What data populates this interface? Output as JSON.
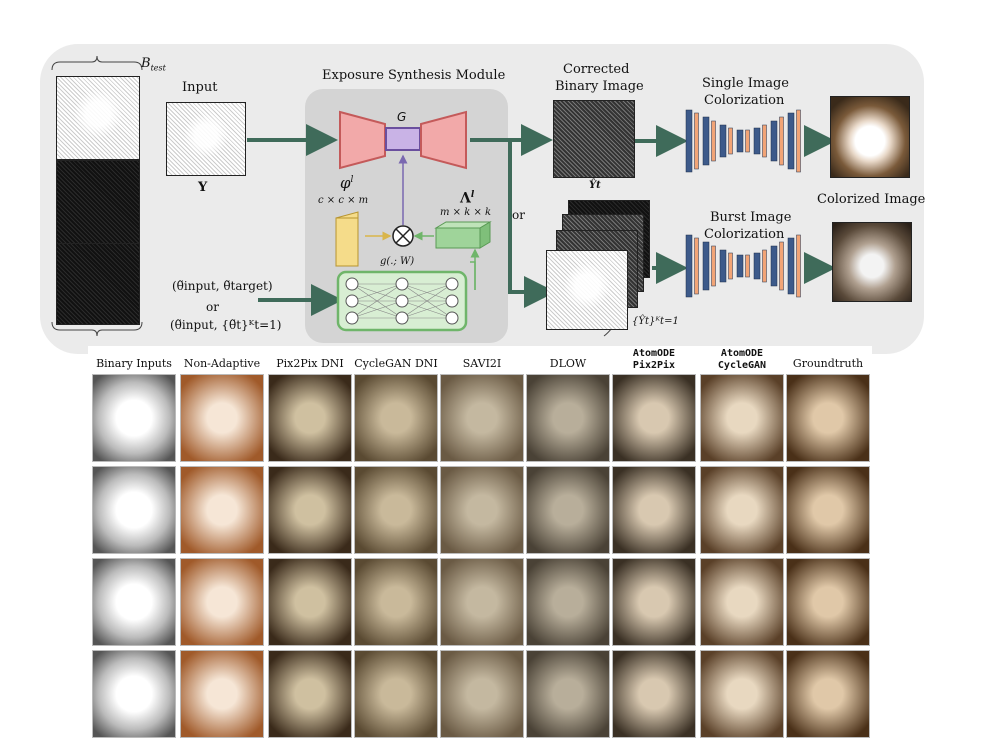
{
  "pipeline": {
    "batch_label": "B",
    "batch_subscript": "test",
    "input_label": "Input",
    "input_symbol": "Y",
    "module_title": "Exposure Synthesis Module",
    "generator_symbol": "G",
    "phi_symbol": "φ",
    "phi_sup": "l",
    "phi_dims": "c × c × m",
    "lambda_symbol": "Λ",
    "lambda_sup": "l",
    "lambda_dims": "m × k × k",
    "g_func": "g(.; W)",
    "theta_pair": "(θ̃input, θ̃target)",
    "or_text": "or",
    "theta_burst": "(θ̃input, {θ̃t}ᴷt=1)",
    "corrected_label_1": "Corrected",
    "corrected_label_2": "Binary Image",
    "corrected_symbol": "Ŷt",
    "burst_symbol": "{Ŷt}ᴷt=1",
    "branch_or": "or",
    "single_label_1": "Single Image",
    "single_label_2": "Colorization",
    "burst_label_1": "Burst Image",
    "burst_label_2": "Colorization",
    "colorized_label": "Colorized Image"
  },
  "comparison": {
    "columns": [
      {
        "title": "Binary Inputs",
        "bold": false
      },
      {
        "title": "Non-Adaptive",
        "bold": false
      },
      {
        "title": "Pix2Pix DNI",
        "bold": false
      },
      {
        "title": "CycleGAN DNI",
        "bold": false
      },
      {
        "title": "SAVI2I",
        "bold": false
      },
      {
        "title": "DLOW",
        "bold": false
      },
      {
        "title": "AtomODE Pix2Pix",
        "bold": true
      },
      {
        "title": "AtomODE CycleGAN",
        "bold": true
      },
      {
        "title": "Groundtruth",
        "bold": false
      }
    ],
    "rows": 4
  },
  "colors": {
    "panel": "#ebebeb",
    "module": "#d4d4d4",
    "arrow": "#3f6b5a",
    "encoder": "#f2a9a9",
    "latent": "#c9b3e6",
    "phi_block": "#f5dc8a",
    "lambda_block": "#9fd49a",
    "unet_blue": "#3d5a8a",
    "unet_orange": "#f2a476"
  }
}
